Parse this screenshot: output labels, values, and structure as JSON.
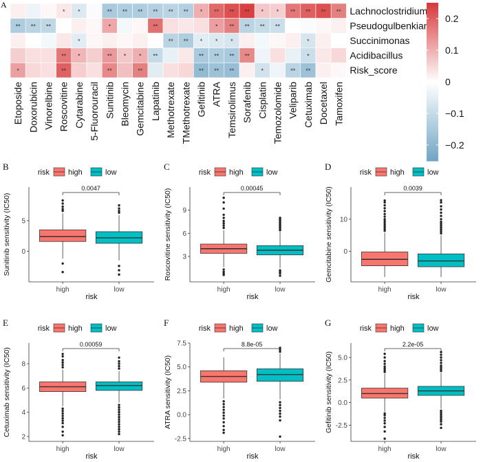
{
  "colors": {
    "high": "#F8766D",
    "low": "#00BFC4",
    "neg": "#6FA5C4",
    "mid": "#FFFFFF",
    "pos": "#D7383A",
    "text": "#111111"
  },
  "chart_data": [
    {
      "panel": "A",
      "type": "heatmap",
      "rows": [
        "Lachnoclostridium",
        "Pseudogulbenkiania",
        "Succinimonas",
        "Acidibacillus",
        "Risk_score"
      ],
      "columns": [
        "Etoposide",
        "Doxorubicin",
        "Vinorelbine",
        "Roscovitine",
        "Cytarabine",
        "5-Fluorouracil",
        "Sunitinib",
        "Bleomycin",
        "Gemcitabine",
        "Lapatinib",
        "Methotrexate",
        "TMethotrexate",
        "Gefitinib",
        "ATRA",
        "Temsirolimus",
        "Sorafenib",
        "Cisplatin",
        "Temozolomide",
        "Veliparib",
        "Cetuximab",
        "Docetaxel",
        "Tamoxifen"
      ],
      "values": [
        [
          0.02,
          -0.03,
          0.01,
          0.03,
          -0.06,
          -0.01,
          -0.15,
          -0.14,
          -0.14,
          -0.13,
          -0.12,
          -0.13,
          0.1,
          0.19,
          0.22,
          0.24,
          0.07,
          0.06,
          0.17,
          0.2,
          0.22,
          0.16
        ],
        [
          -0.14,
          -0.12,
          -0.11,
          0.0,
          0.02,
          0.01,
          0.11,
          -0.02,
          0.01,
          0.18,
          0.04,
          0.03,
          0.04,
          0.12,
          0.16,
          -0.12,
          -0.1,
          -0.09,
          0.0,
          -0.01,
          0.01,
          0.02
        ],
        [
          0.02,
          0.0,
          -0.02,
          0.03,
          -0.05,
          0.01,
          0.02,
          0.01,
          0.02,
          0.0,
          -0.12,
          -0.14,
          -0.05,
          -0.06,
          -0.07,
          0.02,
          -0.02,
          0.01,
          0.02,
          -0.07,
          0.02,
          0.0
        ],
        [
          0.06,
          0.04,
          0.04,
          0.17,
          0.09,
          0.06,
          0.13,
          0.07,
          0.1,
          -0.1,
          -0.04,
          0.03,
          -0.15,
          -0.14,
          -0.15,
          0.15,
          -0.03,
          0.04,
          -0.04,
          -0.09,
          0.03,
          0.05
        ],
        [
          0.12,
          0.05,
          0.04,
          0.2,
          0.06,
          0.04,
          0.15,
          0.08,
          0.16,
          -0.05,
          0.04,
          0.05,
          -0.19,
          -0.17,
          -0.18,
          0.02,
          -0.08,
          -0.03,
          -0.12,
          -0.17,
          0.02,
          0.01
        ]
      ],
      "stars": [
        [
          "",
          "",
          "",
          "*",
          "*",
          "",
          "**",
          "**",
          "**",
          "**",
          "**",
          "**",
          "*",
          "**",
          "**",
          "**",
          "*",
          "*",
          "**",
          "**",
          "**",
          "**"
        ],
        [
          "**",
          "**",
          "**",
          "",
          "",
          "",
          "*",
          "",
          "",
          "**",
          "",
          "",
          "",
          "*",
          "**",
          "**",
          "**",
          "**",
          "",
          "",
          "",
          ""
        ],
        [
          "",
          "",
          "",
          "",
          "*",
          "",
          "",
          "",
          "",
          "",
          "**",
          "**",
          "*",
          "*",
          "*",
          "",
          "",
          "",
          "",
          "*",
          "",
          ""
        ],
        [
          "",
          "",
          "",
          "**",
          "*",
          "",
          "**",
          "*",
          "*",
          "**",
          "",
          "",
          "**",
          "**",
          "**",
          "**",
          "",
          "",
          "",
          "*",
          "",
          ""
        ],
        [
          "*",
          "",
          "",
          "**",
          "",
          "",
          "**",
          "",
          "**",
          "",
          "",
          "",
          "**",
          "**",
          "**",
          "",
          "*",
          "",
          "**",
          "**",
          "",
          ""
        ]
      ],
      "legend": {
        "ticks": [
          0.2,
          0.1,
          0,
          -0.1,
          -0.2
        ],
        "tick_labels": [
          "0.2",
          "0.1",
          "0",
          "−0.1",
          "−0.2"
        ],
        "range": [
          -0.25,
          0.25
        ]
      }
    },
    {
      "panel": "B",
      "type": "boxplot",
      "ylabel": "Sunitinib sensitivity (IC50)",
      "xlabel": "risk",
      "legend_title": "risk",
      "categories": [
        "high",
        "low"
      ],
      "pvalue": "0.0047",
      "ylim": [
        -5.0,
        10.5
      ],
      "yticks": [
        0,
        5
      ],
      "boxes": [
        {
          "q1": 1.6,
          "median": 2.4,
          "q3": 3.5,
          "lower": -1.2,
          "upper": 6.2,
          "outliers": [
            6.6,
            6.9,
            7.3,
            7.8,
            8.3,
            -2.0,
            -3.4
          ]
        },
        {
          "q1": 1.3,
          "median": 2.2,
          "q3": 3.2,
          "lower": -1.5,
          "upper": 5.9,
          "outliers": [
            6.3,
            6.6,
            7.0,
            7.5,
            -2.4,
            -3.1,
            -3.8
          ]
        }
      ]
    },
    {
      "panel": "C",
      "type": "boxplot",
      "ylabel": "Roscovitine sensitivity (IC50)",
      "xlabel": "risk",
      "legend_title": "risk",
      "categories": [
        "high",
        "low"
      ],
      "pvalue": "0.00045",
      "ylim": [
        -0.3,
        12.0
      ],
      "yticks": [
        3,
        6,
        9
      ],
      "boxes": [
        {
          "q1": 3.4,
          "median": 4.0,
          "q3": 4.6,
          "lower": 1.6,
          "upper": 6.4,
          "outliers": [
            6.7,
            7.0,
            7.3,
            7.6,
            8.0,
            8.4,
            9.2,
            10.0,
            10.6,
            1.3,
            1.0,
            0.8,
            0.6
          ]
        },
        {
          "q1": 3.2,
          "median": 3.8,
          "q3": 4.4,
          "lower": 1.5,
          "upper": 6.2,
          "outliers": [
            6.4,
            6.6,
            6.8,
            7.0,
            7.2,
            7.4,
            7.6,
            7.8,
            8.0,
            1.2,
            1.0,
            0.8,
            0.5
          ]
        }
      ]
    },
    {
      "panel": "D",
      "type": "boxplot",
      "ylabel": "Gemcitabine sensitivity (IC50)",
      "xlabel": "risk",
      "legend_title": "risk",
      "categories": [
        "high",
        "low"
      ],
      "pvalue": "0.0039",
      "ylim": [
        -9.5,
        20.0
      ],
      "yticks": [
        0,
        10
      ],
      "boxes": [
        {
          "q1": -4.5,
          "median": -2.5,
          "q3": -0.2,
          "lower": -8.0,
          "upper": 5.8,
          "outliers": [
            6.4,
            7.0,
            7.6,
            8.2,
            8.8,
            9.4,
            10.0,
            10.8,
            11.6,
            12.5,
            13.4,
            14.3,
            15.2,
            15.8
          ]
        },
        {
          "q1": -4.8,
          "median": -3.0,
          "q3": -0.8,
          "lower": -8.0,
          "upper": 5.0,
          "outliers": [
            5.6,
            6.2,
            6.8,
            7.4,
            8.0,
            8.6,
            9.2,
            10.0,
            11.0,
            12.0,
            13.0,
            14.0,
            15.2,
            15.9
          ]
        }
      ]
    },
    {
      "panel": "E",
      "type": "boxplot",
      "ylabel": "Cetuximab sensitivity (IC50)",
      "xlabel": "risk",
      "legend_title": "risk",
      "categories": [
        "high",
        "low"
      ],
      "pvalue": "0.00059",
      "ylim": [
        1.6,
        9.7
      ],
      "yticks": [
        2,
        4,
        6,
        8
      ],
      "boxes": [
        {
          "q1": 5.7,
          "median": 6.1,
          "q3": 6.5,
          "lower": 4.5,
          "upper": 7.5,
          "outliers": [
            7.7,
            7.9,
            8.1,
            8.3,
            8.6,
            8.8,
            4.3,
            4.1,
            3.9,
            3.7,
            3.5,
            3.3,
            3.1,
            2.8,
            2.4,
            2.1
          ]
        },
        {
          "q1": 5.8,
          "median": 6.2,
          "q3": 6.5,
          "lower": 4.8,
          "upper": 7.4,
          "outliers": [
            7.6,
            7.8,
            8.0,
            8.2,
            8.5,
            4.6,
            4.4,
            4.2,
            4.0,
            3.8,
            3.6,
            3.4,
            3.2,
            3.0,
            2.8,
            2.6,
            2.4,
            2.2
          ]
        }
      ]
    },
    {
      "panel": "F",
      "type": "boxplot",
      "ylabel": "ATRA sensitivity (IC50)",
      "xlabel": "risk",
      "legend_title": "risk",
      "categories": [
        "high",
        "low"
      ],
      "pvalue": "8.8e-05",
      "ylim": [
        -2.8,
        7.5
      ],
      "yticks": [
        -2.5,
        0.0,
        2.5,
        5.0,
        7.5
      ],
      "ytick_labels": [
        "-2.5",
        "0.0",
        "2.5",
        "5.0",
        "7.5"
      ],
      "boxes": [
        {
          "q1": 3.4,
          "median": 4.0,
          "q3": 4.6,
          "lower": 1.7,
          "upper": 6.0,
          "outliers": [
            1.4,
            1.1,
            0.8,
            0.5,
            0.2,
            -0.1,
            -0.4,
            -0.8,
            -1.2,
            -1.6,
            -1.9
          ]
        },
        {
          "q1": 3.5,
          "median": 4.2,
          "q3": 4.8,
          "lower": 1.6,
          "upper": 6.4,
          "outliers": [
            6.6,
            6.8,
            7.0,
            1.3,
            1.0,
            0.7,
            0.4,
            0.1,
            -0.2,
            -0.6,
            -2.3
          ]
        }
      ]
    },
    {
      "panel": "G",
      "type": "boxplot",
      "ylabel": "Gefitinib sensitivity (IC50)",
      "xlabel": "risk",
      "legend_title": "risk",
      "categories": [
        "high",
        "low"
      ],
      "pvalue": "2.2e-05",
      "ylim": [
        -4.3,
        6.6
      ],
      "yticks": [
        -2.5,
        0.0,
        2.5,
        5.0
      ],
      "ytick_labels": [
        "-2.5",
        "0.0",
        "2.5",
        "5.0"
      ],
      "boxes": [
        {
          "q1": 0.5,
          "median": 1.0,
          "q3": 1.6,
          "lower": -1.0,
          "upper": 3.2,
          "outliers": [
            3.4,
            3.6,
            3.8,
            4.0,
            4.3,
            4.6,
            5.0,
            5.4,
            -1.2,
            -1.4,
            -1.7,
            -2.0,
            -2.3,
            -2.7,
            -3.2,
            -4.0
          ]
        },
        {
          "q1": 0.8,
          "median": 1.3,
          "q3": 1.8,
          "lower": -0.7,
          "upper": 3.3,
          "outliers": [
            3.5,
            3.7,
            3.9,
            4.1,
            4.4,
            4.7,
            5.0,
            5.3,
            5.6,
            -0.9,
            -1.1,
            -1.3,
            -1.5,
            -1.7,
            -1.9,
            -2.1,
            -2.4,
            -2.8
          ]
        }
      ]
    }
  ]
}
